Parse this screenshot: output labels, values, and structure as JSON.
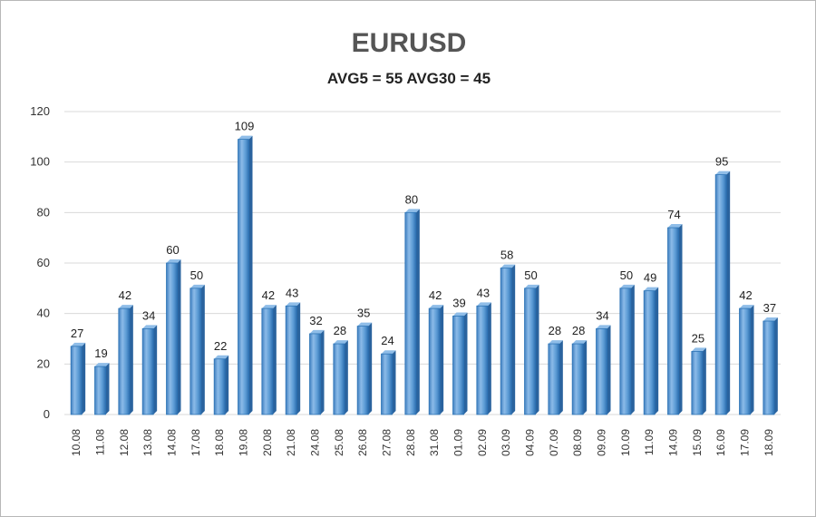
{
  "chart_data": {
    "type": "bar",
    "title": "EURUSD",
    "subtitle": "AVG5 = 55 AVG30 = 45",
    "xlabel": "",
    "ylabel": "",
    "ylim": [
      0,
      120
    ],
    "yticks": [
      0,
      20,
      40,
      60,
      80,
      100,
      120
    ],
    "grid": true,
    "legend": "none",
    "bar_color": "#5b9bd5",
    "bar_edge_color": "#2e75b6",
    "grid_color": "#d9d9d9",
    "categories": [
      "10.08",
      "11.08",
      "12.08",
      "13.08",
      "14.08",
      "17.08",
      "18.08",
      "19.08",
      "20.08",
      "21.08",
      "24.08",
      "25.08",
      "26.08",
      "27.08",
      "28.08",
      "31.08",
      "01.09",
      "02.09",
      "03.09",
      "04.09",
      "07.09",
      "08.09",
      "09.09",
      "10.09",
      "11.09",
      "14.09",
      "15.09",
      "16.09",
      "17.09",
      "18.09"
    ],
    "values": [
      27,
      19,
      42,
      34,
      60,
      50,
      22,
      109,
      42,
      43,
      32,
      28,
      35,
      24,
      80,
      42,
      39,
      43,
      58,
      50,
      28,
      28,
      34,
      50,
      49,
      74,
      25,
      95,
      42,
      37
    ]
  }
}
